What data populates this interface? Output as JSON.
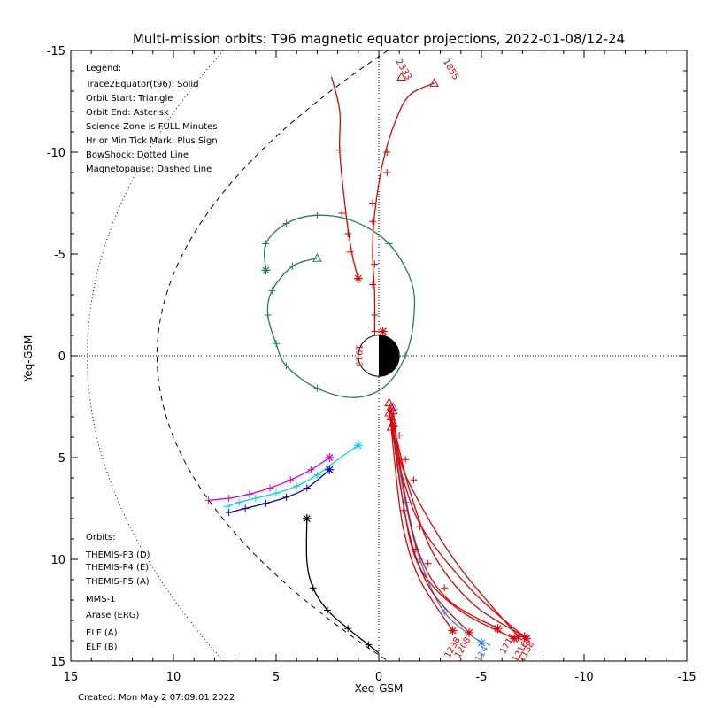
{
  "title": "Multi-mission orbits: T96 magnetic equator projections, 2022-01-08/12-24",
  "footer": "Created: Mon May  2 07:09:01 2022",
  "legend": {
    "heading": "Legend:",
    "lines": [
      "Trace2Equator(t96): Solid",
      "Orbit Start: Triangle",
      "Orbit End: Asterisk",
      "Science Zone is FULL Minutes",
      "Hr or Min Tick Mark: Plus Sign",
      "BowShock: Dotted Line",
      "Magnetopause: Dashed Line"
    ]
  },
  "orbits_legend": {
    "heading": "Orbits:",
    "items": [
      {
        "label": "THEMIS-P3 (D)",
        "color": "#00d8d8"
      },
      {
        "label": "THEMIS-P4 (E)",
        "color": "#0000c0"
      },
      {
        "label": "THEMIS-P5 (A)",
        "color": "#d800d8"
      },
      {
        "label": "MMS-1",
        "color": "#000000"
      },
      {
        "label": "Arase (ERG)",
        "color": "#208050"
      },
      {
        "label": "ELF (A)",
        "color": "#3080e0"
      },
      {
        "label": "ELF (B)",
        "color": "#e00000"
      }
    ]
  },
  "chart_data": {
    "type": "line",
    "xlabel": "Xeq-GSM",
    "ylabel": "Yeq-GSM",
    "xlim": [
      15,
      -15
    ],
    "ylim": [
      -15,
      15
    ],
    "xticks": [
      15,
      10,
      5,
      0,
      -5,
      -10,
      -15
    ],
    "yticks": [
      -15,
      -10,
      -5,
      0,
      5,
      10,
      15
    ],
    "zero_lines": "dotted",
    "series": [
      {
        "name": "THEMIS-P3 (D)",
        "color": "#00d8d8",
        "points": [
          [
            7.4,
            7.4
          ],
          [
            6.8,
            7.2
          ],
          [
            6.0,
            7.0
          ],
          [
            5.0,
            6.75
          ],
          [
            4.0,
            6.4
          ],
          [
            3.0,
            5.85
          ],
          [
            2.0,
            5.1
          ],
          [
            1.0,
            4.4
          ]
        ],
        "ticks": [
          [
            7.4,
            7.4
          ],
          [
            6.8,
            7.2
          ],
          [
            6.0,
            7.0
          ],
          [
            5.0,
            6.75
          ],
          [
            4.0,
            6.4
          ],
          [
            3.0,
            5.85
          ]
        ],
        "start": null,
        "end": [
          1.0,
          4.4
        ]
      },
      {
        "name": "THEMIS-P4 (E)",
        "color": "#0000c0",
        "points": [
          [
            7.3,
            7.7
          ],
          [
            6.5,
            7.5
          ],
          [
            5.5,
            7.25
          ],
          [
            4.5,
            6.95
          ],
          [
            3.5,
            6.5
          ],
          [
            2.4,
            5.6
          ]
        ],
        "ticks": [
          [
            7.3,
            7.7
          ],
          [
            6.5,
            7.5
          ],
          [
            5.5,
            7.25
          ],
          [
            4.5,
            6.95
          ],
          [
            3.5,
            6.5
          ]
        ],
        "start": null,
        "end": [
          2.4,
          5.6
        ]
      },
      {
        "name": "THEMIS-P5 (A)",
        "color": "#d800d8",
        "points": [
          [
            8.3,
            7.1
          ],
          [
            7.3,
            7.0
          ],
          [
            6.3,
            6.8
          ],
          [
            5.3,
            6.5
          ],
          [
            4.3,
            6.1
          ],
          [
            3.3,
            5.6
          ],
          [
            2.4,
            5.0
          ]
        ],
        "ticks": [
          [
            8.3,
            7.1
          ],
          [
            7.3,
            7.0
          ],
          [
            6.3,
            6.8
          ],
          [
            5.3,
            6.5
          ],
          [
            4.3,
            6.1
          ],
          [
            3.3,
            5.6
          ]
        ],
        "start": null,
        "end": [
          2.4,
          5.0
        ]
      },
      {
        "name": "MMS-1",
        "color": "#000000",
        "points": [
          [
            0.0,
            14.6
          ],
          [
            0.5,
            14.2
          ],
          [
            1.5,
            13.4
          ],
          [
            2.5,
            12.5
          ],
          [
            3.2,
            11.4
          ],
          [
            3.5,
            10.1
          ],
          [
            3.5,
            8.0
          ]
        ],
        "ticks": [
          [
            0.5,
            14.2
          ],
          [
            1.5,
            13.4
          ],
          [
            2.5,
            12.5
          ],
          [
            3.2,
            11.4
          ]
        ],
        "start": null,
        "end": [
          3.5,
          8.0
        ]
      },
      {
        "name": "Arase (ERG)",
        "color": "#208050",
        "points": [
          [
            3.0,
            -4.8
          ],
          [
            4.2,
            -4.4
          ],
          [
            5.2,
            -3.2
          ],
          [
            5.4,
            -2.0
          ],
          [
            5.0,
            -0.6
          ],
          [
            4.5,
            0.5
          ],
          [
            3.0,
            1.6
          ],
          [
            1.2,
            2.05
          ],
          [
            -0.3,
            1.5
          ],
          [
            -1.3,
            0.0
          ],
          [
            -1.7,
            -1.8
          ],
          [
            -1.6,
            -3.6
          ],
          [
            -0.5,
            -5.5
          ],
          [
            1.2,
            -6.6
          ],
          [
            3.0,
            -6.9
          ],
          [
            4.5,
            -6.5
          ],
          [
            5.5,
            -5.5
          ],
          [
            5.5,
            -4.2
          ]
        ],
        "ticks": [
          [
            4.2,
            -4.4
          ],
          [
            5.2,
            -3.2
          ],
          [
            5.4,
            -2.0
          ],
          [
            5.0,
            -0.6
          ],
          [
            4.5,
            0.5
          ],
          [
            3.0,
            1.6
          ],
          [
            -1.3,
            0.0
          ],
          [
            -0.5,
            -5.5
          ],
          [
            3.0,
            -6.9
          ],
          [
            4.5,
            -6.5
          ],
          [
            5.5,
            -5.5
          ]
        ],
        "start": [
          3.0,
          -4.8
        ],
        "end": [
          5.5,
          -4.2
        ]
      },
      {
        "name": "ELF (A)",
        "color": "#3080e0",
        "points": [
          [
            -0.7,
            2.5
          ],
          [
            -0.9,
            4.8
          ],
          [
            -1.3,
            7.2
          ],
          [
            -2.0,
            10.0
          ],
          [
            -3.2,
            12.6
          ],
          [
            -5.0,
            14.1
          ]
        ],
        "ticks": [
          [
            -0.9,
            4.8
          ],
          [
            -1.3,
            7.2
          ],
          [
            -2.0,
            10.0
          ],
          [
            -3.2,
            12.6
          ]
        ],
        "start": [
          -0.7,
          2.5
        ],
        "end": [
          -5.0,
          14.1
        ]
      },
      {
        "name": "ELF (B)",
        "color": "#e00000",
        "lines": [
          [
            [
              -0.5,
              2.3
            ],
            [
              -0.8,
              5.5
            ],
            [
              -1.2,
              8.5
            ],
            [
              -2.0,
              11.0
            ],
            [
              -3.6,
              13.5
            ]
          ],
          [
            [
              -0.6,
              2.5
            ],
            [
              -1.0,
              6.0
            ],
            [
              -1.6,
              9.2
            ],
            [
              -2.6,
              11.6
            ],
            [
              -4.4,
              13.6
            ]
          ],
          [
            [
              -0.7,
              2.7
            ],
            [
              -1.2,
              6.4
            ],
            [
              -2.0,
              9.8
            ],
            [
              -3.4,
              12.0
            ],
            [
              -5.8,
              13.4
            ]
          ],
          [
            [
              -0.6,
              3.0
            ],
            [
              -1.1,
              6.7
            ],
            [
              -1.9,
              10.2
            ],
            [
              -3.8,
              12.4
            ],
            [
              -6.6,
              13.9
            ]
          ],
          [
            [
              -0.7,
              3.3
            ],
            [
              -1.5,
              6.6
            ],
            [
              -2.7,
              9.8
            ],
            [
              -4.6,
              12.2
            ],
            [
              -7.1,
              13.8
            ]
          ],
          [
            [
              -0.6,
              3.5
            ],
            [
              -1.2,
              6.1
            ],
            [
              -2.2,
              8.6
            ],
            [
              -4.6,
              11.6
            ],
            [
              -7.2,
              13.9
            ]
          ],
          [
            [
              -0.5,
              2.8
            ],
            [
              -0.9,
              4.6
            ],
            [
              -1.6,
              6.5
            ],
            [
              -3.8,
              10.2
            ],
            [
              -6.8,
              13.8
            ]
          ],
          [
            [
              1.0,
              -3.8
            ],
            [
              1.3,
              -5.0
            ],
            [
              1.6,
              -7.0
            ],
            [
              1.9,
              -10.0
            ],
            [
              1.9,
              -12.0
            ],
            [
              2.3,
              -13.7
            ]
          ],
          [
            [
              0.2,
              -1.2
            ],
            [
              0.2,
              -3.0
            ],
            [
              0.3,
              -5.0
            ],
            [
              0.2,
              -7.0
            ],
            [
              -0.2,
              -9.5
            ],
            [
              -0.8,
              -11.5
            ],
            [
              -1.5,
              -12.8
            ],
            [
              -2.7,
              -13.4
            ]
          ]
        ],
        "ticks": [
          [
            -1.0,
            3.9
          ],
          [
            -1.3,
            5.1
          ],
          [
            -1.7,
            6.1
          ],
          [
            -1.2,
            7.6
          ],
          [
            -2.0,
            8.4
          ],
          [
            -1.8,
            9.5
          ],
          [
            -2.4,
            10.2
          ],
          [
            -3.2,
            11.4
          ],
          [
            1.5,
            -6.0
          ],
          [
            1.9,
            -10.1
          ],
          [
            1.8,
            -7.0
          ],
          [
            1.4,
            -5.1
          ],
          [
            0.2,
            -1.2
          ],
          [
            0.2,
            -2.0
          ],
          [
            0.3,
            -3.5
          ],
          [
            0.2,
            -4.5
          ],
          [
            0.3,
            -6.6
          ],
          [
            0.3,
            -7.5
          ],
          [
            -0.4,
            -9.0
          ],
          [
            -0.4,
            -10.0
          ]
        ],
        "start_markers": [
          [
            -0.5,
            2.3
          ],
          [
            -0.6,
            2.5
          ],
          [
            -0.7,
            2.7
          ],
          [
            -0.6,
            3.0
          ],
          [
            -0.7,
            3.3
          ],
          [
            -0.6,
            3.5
          ],
          [
            -0.5,
            2.8
          ],
          [
            -2.7,
            -13.4
          ],
          [
            -1.1,
            -13.7
          ]
        ],
        "end_markers": [
          [
            -3.6,
            13.5
          ],
          [
            -4.4,
            13.6
          ],
          [
            -5.8,
            13.4
          ],
          [
            -6.6,
            13.9
          ],
          [
            -7.1,
            13.8
          ],
          [
            -7.2,
            13.9
          ],
          [
            -6.8,
            13.8
          ],
          [
            1.0,
            -3.8
          ],
          [
            -0.2,
            -1.2
          ]
        ]
      }
    ],
    "labels": [
      {
        "text": "1913",
        "color": "#e00000",
        "x": 1.1,
        "y": 0.0,
        "rotate": 90
      },
      {
        "text": "2333",
        "color": "#e00000",
        "x": -1.1,
        "y": -14.0,
        "rotate": 60
      },
      {
        "text": "1855",
        "color": "#e00000",
        "x": -3.4,
        "y": -14.0,
        "rotate": 60
      },
      {
        "text": "1238",
        "color": "#e00000",
        "x": -3.7,
        "y": 14.4,
        "rotate": -60
      },
      {
        "text": "1208",
        "color": "#e00000",
        "x": -4.2,
        "y": 14.4,
        "rotate": -60
      },
      {
        "text": "1141",
        "color": "#3080e0",
        "x": -5.2,
        "y": 14.6,
        "rotate": -60
      },
      {
        "text": "1711",
        "color": "#e00000",
        "x": -6.4,
        "y": 14.2,
        "rotate": -60
      },
      {
        "text": "1216",
        "color": "#e00000",
        "x": -7.0,
        "y": 14.6,
        "rotate": -60
      },
      {
        "text": "1138",
        "color": "#e00000",
        "x": -7.3,
        "y": 14.6,
        "rotate": -60
      }
    ]
  }
}
